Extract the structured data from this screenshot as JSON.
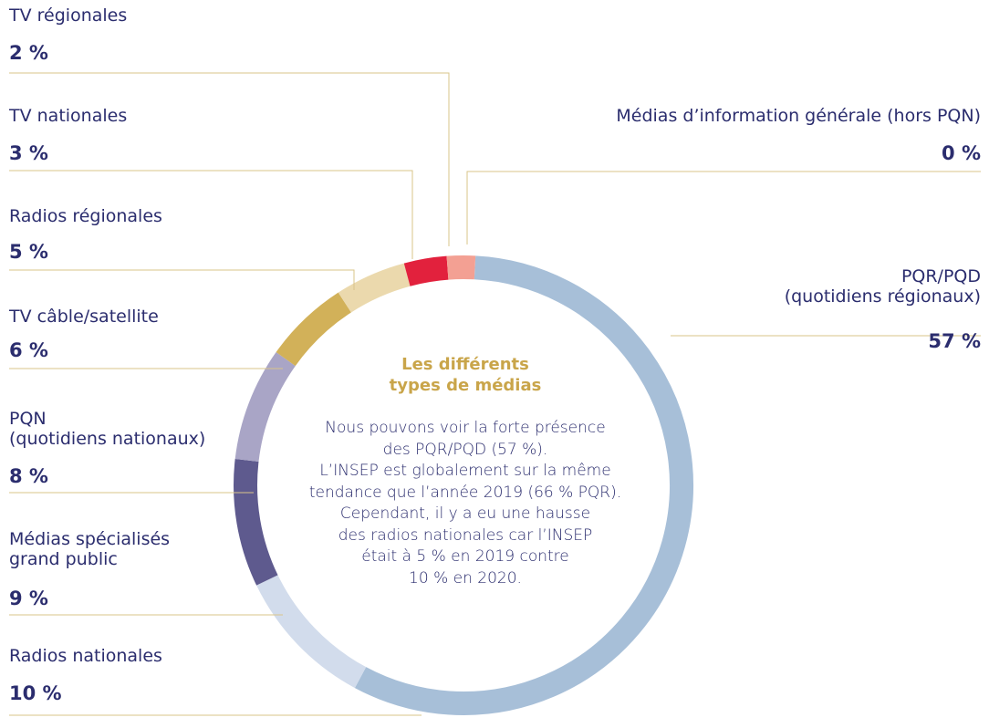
{
  "chart_data": {
    "type": "pie",
    "title": "Les différents\ntypes de médias",
    "annotation": "Nous pouvons voir la forte présence\ndes PQR/PQD (57 %).\nL’INSEP est globalement sur la même\ntendance que l’année 2019 (66 % PQR).\nCependant, il y a eu une hausse\ndes radios nationales car l’INSEP\nétait à 5 % en 2019 contre\n10 % en 2020.",
    "categories": [
      "PQR/PQD\n(quotidiens régionaux)",
      "Radios nationales",
      "Médias spécialisés\ngrand public",
      "PQN\n(quotidiens nationaux)",
      "TV câble/satellite",
      "Radios régionales",
      "TV nationales",
      "TV régionales",
      "Médias d’information générale (hors PQN)"
    ],
    "values": [
      57,
      10,
      9,
      8,
      6,
      5,
      3,
      2,
      0
    ],
    "value_labels": [
      "57 %",
      "10 %",
      "9 %",
      "8 %",
      "6 %",
      "5 %",
      "3 %",
      "2 %",
      "0 %"
    ],
    "colors": [
      "#a7bfd8",
      "#d2dcec",
      "#5e5a8e",
      "#a9a5c6",
      "#d2b159",
      "#ebd9ad",
      "#e2213d",
      "#f3a093",
      "#f3a093"
    ]
  }
}
